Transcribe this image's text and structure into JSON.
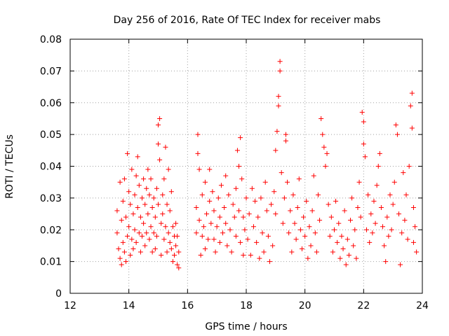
{
  "chart_data": {
    "type": "scatter",
    "title": "Day 256 of 2016, Rate Of TEC Index for receiver mabs",
    "xlabel": "GPS time / hours",
    "ylabel": "ROTI / TECUs",
    "xlim": [
      12,
      24
    ],
    "ylim": [
      0,
      0.08
    ],
    "xticks": [
      12,
      14,
      16,
      18,
      20,
      22,
      24
    ],
    "yticks": [
      0,
      0.01,
      0.02,
      0.03,
      0.04,
      0.05,
      0.06,
      0.07,
      0.08
    ],
    "xtick_labels": [
      "12",
      "14",
      "16",
      "18",
      "20",
      "22",
      "24"
    ],
    "ytick_labels": [
      "0",
      "0.01",
      "0.02",
      "0.03",
      "0.04",
      "0.05",
      "0.06",
      "0.07",
      "0.08"
    ],
    "grid": true,
    "marker": "+",
    "color": "#ff0000",
    "series": [
      {
        "name": "ROTI",
        "points": [
          [
            13.6,
            0.026
          ],
          [
            13.6,
            0.019
          ],
          [
            13.65,
            0.014
          ],
          [
            13.7,
            0.011
          ],
          [
            13.7,
            0.035
          ],
          [
            13.75,
            0.023
          ],
          [
            13.75,
            0.009
          ],
          [
            13.8,
            0.029
          ],
          [
            13.8,
            0.016
          ],
          [
            13.85,
            0.013
          ],
          [
            13.85,
            0.036
          ],
          [
            13.9,
            0.024
          ],
          [
            13.9,
            0.01
          ],
          [
            13.95,
            0.018
          ],
          [
            13.95,
            0.044
          ],
          [
            14.0,
            0.032
          ],
          [
            14.0,
            0.021
          ],
          [
            14.05,
            0.012
          ],
          [
            14.05,
            0.028
          ],
          [
            14.1,
            0.017
          ],
          [
            14.1,
            0.039
          ],
          [
            14.15,
            0.025
          ],
          [
            14.15,
            0.014
          ],
          [
            14.2,
            0.031
          ],
          [
            14.2,
            0.02
          ],
          [
            14.25,
            0.037
          ],
          [
            14.25,
            0.016
          ],
          [
            14.3,
            0.043
          ],
          [
            14.3,
            0.027
          ],
          [
            14.35,
            0.019
          ],
          [
            14.35,
            0.034
          ],
          [
            14.4,
            0.024
          ],
          [
            14.4,
            0.013
          ],
          [
            14.45,
            0.03
          ],
          [
            14.45,
            0.018
          ],
          [
            14.5,
            0.036
          ],
          [
            14.5,
            0.022
          ],
          [
            14.55,
            0.028
          ],
          [
            14.55,
            0.015
          ],
          [
            14.6,
            0.033
          ],
          [
            14.6,
            0.019
          ],
          [
            14.65,
            0.039
          ],
          [
            14.65,
            0.025
          ],
          [
            14.7,
            0.017
          ],
          [
            14.7,
            0.031
          ],
          [
            14.75,
            0.036
          ],
          [
            14.75,
            0.021
          ],
          [
            14.8,
            0.027
          ],
          [
            14.8,
            0.013
          ],
          [
            14.85,
            0.03
          ],
          [
            14.85,
            0.019
          ],
          [
            14.9,
            0.024
          ],
          [
            14.9,
            0.014
          ],
          [
            14.95,
            0.033
          ],
          [
            14.95,
            0.018
          ],
          [
            15.0,
            0.047
          ],
          [
            15.0,
            0.053
          ],
          [
            15.0,
            0.028
          ],
          [
            15.05,
            0.055
          ],
          [
            15.05,
            0.042
          ],
          [
            15.1,
            0.022
          ],
          [
            15.1,
            0.012
          ],
          [
            15.15,
            0.031
          ],
          [
            15.15,
            0.025
          ],
          [
            15.2,
            0.017
          ],
          [
            15.2,
            0.036
          ],
          [
            15.25,
            0.046
          ],
          [
            15.25,
            0.021
          ],
          [
            15.3,
            0.013
          ],
          [
            15.3,
            0.028
          ],
          [
            15.35,
            0.019
          ],
          [
            15.35,
            0.039
          ],
          [
            15.4,
            0.016
          ],
          [
            15.4,
            0.026
          ],
          [
            15.45,
            0.014
          ],
          [
            15.45,
            0.032
          ],
          [
            15.5,
            0.021
          ],
          [
            15.5,
            0.01
          ],
          [
            15.55,
            0.018
          ],
          [
            15.55,
            0.012
          ],
          [
            15.6,
            0.015
          ],
          [
            15.6,
            0.022
          ],
          [
            15.65,
            0.009
          ],
          [
            15.65,
            0.018
          ],
          [
            15.7,
            0.013
          ],
          [
            15.7,
            0.008
          ],
          [
            16.3,
            0.027
          ],
          [
            16.3,
            0.019
          ],
          [
            16.35,
            0.05
          ],
          [
            16.35,
            0.044
          ],
          [
            16.4,
            0.039
          ],
          [
            16.4,
            0.023
          ],
          [
            16.45,
            0.012
          ],
          [
            16.5,
            0.018
          ],
          [
            16.5,
            0.031
          ],
          [
            16.55,
            0.021
          ],
          [
            16.6,
            0.014
          ],
          [
            16.6,
            0.035
          ],
          [
            16.65,
            0.025
          ],
          [
            16.7,
            0.017
          ],
          [
            16.75,
            0.029
          ],
          [
            16.75,
            0.039
          ],
          [
            16.8,
            0.022
          ],
          [
            16.85,
            0.032
          ],
          [
            16.9,
            0.017
          ],
          [
            16.9,
            0.026
          ],
          [
            16.95,
            0.013
          ],
          [
            17.0,
            0.021
          ],
          [
            17.05,
            0.03
          ],
          [
            17.1,
            0.024
          ],
          [
            17.1,
            0.016
          ],
          [
            17.15,
            0.034
          ],
          [
            17.2,
            0.019
          ],
          [
            17.25,
            0.027
          ],
          [
            17.3,
            0.037
          ],
          [
            17.3,
            0.022
          ],
          [
            17.35,
            0.015
          ],
          [
            17.4,
            0.031
          ],
          [
            17.45,
            0.02
          ],
          [
            17.5,
            0.013
          ],
          [
            17.55,
            0.028
          ],
          [
            17.6,
            0.024
          ],
          [
            17.65,
            0.033
          ],
          [
            17.65,
            0.018
          ],
          [
            17.7,
            0.045
          ],
          [
            17.75,
            0.04
          ],
          [
            17.75,
            0.026
          ],
          [
            17.8,
            0.049
          ],
          [
            17.8,
            0.016
          ],
          [
            17.85,
            0.036
          ],
          [
            17.9,
            0.024
          ],
          [
            17.9,
            0.012
          ],
          [
            17.95,
            0.02
          ],
          [
            18.0,
            0.03
          ],
          [
            18.05,
            0.017
          ],
          [
            18.1,
            0.025
          ],
          [
            18.15,
            0.012
          ],
          [
            18.2,
            0.033
          ],
          [
            18.25,
            0.021
          ],
          [
            18.3,
            0.029
          ],
          [
            18.35,
            0.016
          ],
          [
            18.4,
            0.024
          ],
          [
            18.45,
            0.011
          ],
          [
            18.5,
            0.03
          ],
          [
            18.55,
            0.019
          ],
          [
            18.6,
            0.013
          ],
          [
            18.65,
            0.035
          ],
          [
            18.7,
            0.026
          ],
          [
            18.75,
            0.018
          ],
          [
            18.8,
            0.01
          ],
          [
            18.85,
            0.028
          ],
          [
            18.9,
            0.015
          ],
          [
            18.95,
            0.032
          ],
          [
            19.0,
            0.025
          ],
          [
            19.0,
            0.045
          ],
          [
            19.05,
            0.051
          ],
          [
            19.1,
            0.059
          ],
          [
            19.1,
            0.062
          ],
          [
            19.15,
            0.07
          ],
          [
            19.15,
            0.073
          ],
          [
            19.2,
            0.038
          ],
          [
            19.25,
            0.022
          ],
          [
            19.3,
            0.03
          ],
          [
            19.35,
            0.05
          ],
          [
            19.35,
            0.048
          ],
          [
            19.4,
            0.035
          ],
          [
            19.45,
            0.019
          ],
          [
            19.5,
            0.026
          ],
          [
            19.55,
            0.013
          ],
          [
            19.6,
            0.031
          ],
          [
            19.65,
            0.022
          ],
          [
            19.7,
            0.017
          ],
          [
            19.75,
            0.027
          ],
          [
            19.8,
            0.036
          ],
          [
            19.85,
            0.02
          ],
          [
            19.9,
            0.014
          ],
          [
            19.95,
            0.024
          ],
          [
            20.0,
            0.018
          ],
          [
            20.05,
            0.029
          ],
          [
            20.1,
            0.011
          ],
          [
            20.15,
            0.021
          ],
          [
            20.2,
            0.015
          ],
          [
            20.25,
            0.026
          ],
          [
            20.3,
            0.037
          ],
          [
            20.35,
            0.019
          ],
          [
            20.4,
            0.013
          ],
          [
            20.45,
            0.031
          ],
          [
            20.5,
            0.023
          ],
          [
            20.55,
            0.055
          ],
          [
            20.6,
            0.05
          ],
          [
            20.65,
            0.046
          ],
          [
            20.7,
            0.04
          ],
          [
            20.75,
            0.044
          ],
          [
            20.8,
            0.028
          ],
          [
            20.85,
            0.018
          ],
          [
            20.9,
            0.024
          ],
          [
            20.95,
            0.013
          ],
          [
            21.0,
            0.02
          ],
          [
            21.05,
            0.029
          ],
          [
            21.1,
            0.016
          ],
          [
            21.15,
            0.022
          ],
          [
            21.2,
            0.011
          ],
          [
            21.25,
            0.018
          ],
          [
            21.3,
            0.014
          ],
          [
            21.35,
            0.026
          ],
          [
            21.4,
            0.009
          ],
          [
            21.45,
            0.017
          ],
          [
            21.5,
            0.012
          ],
          [
            21.55,
            0.023
          ],
          [
            21.6,
            0.03
          ],
          [
            21.65,
            0.015
          ],
          [
            21.7,
            0.02
          ],
          [
            21.75,
            0.011
          ],
          [
            21.8,
            0.027
          ],
          [
            21.85,
            0.035
          ],
          [
            21.9,
            0.024
          ],
          [
            21.95,
            0.057
          ],
          [
            22.0,
            0.054
          ],
          [
            22.0,
            0.047
          ],
          [
            22.05,
            0.043
          ],
          [
            22.1,
            0.02
          ],
          [
            22.15,
            0.031
          ],
          [
            22.2,
            0.016
          ],
          [
            22.25,
            0.025
          ],
          [
            22.3,
            0.019
          ],
          [
            22.35,
            0.029
          ],
          [
            22.4,
            0.022
          ],
          [
            22.45,
            0.034
          ],
          [
            22.5,
            0.04
          ],
          [
            22.55,
            0.044
          ],
          [
            22.6,
            0.027
          ],
          [
            22.65,
            0.021
          ],
          [
            22.7,
            0.015
          ],
          [
            22.75,
            0.01
          ],
          [
            22.8,
            0.024
          ],
          [
            22.85,
            0.018
          ],
          [
            22.9,
            0.031
          ],
          [
            22.95,
            0.02
          ],
          [
            23.0,
            0.028
          ],
          [
            23.05,
            0.035
          ],
          [
            23.1,
            0.053
          ],
          [
            23.15,
            0.05
          ],
          [
            23.2,
            0.025
          ],
          [
            23.25,
            0.009
          ],
          [
            23.3,
            0.019
          ],
          [
            23.35,
            0.038
          ],
          [
            23.4,
            0.023
          ],
          [
            23.45,
            0.031
          ],
          [
            23.5,
            0.017
          ],
          [
            23.55,
            0.04
          ],
          [
            23.6,
            0.059
          ],
          [
            23.65,
            0.063
          ],
          [
            23.65,
            0.052
          ],
          [
            23.7,
            0.027
          ],
          [
            23.7,
            0.016
          ],
          [
            23.75,
            0.021
          ],
          [
            23.8,
            0.013
          ]
        ]
      }
    ]
  }
}
